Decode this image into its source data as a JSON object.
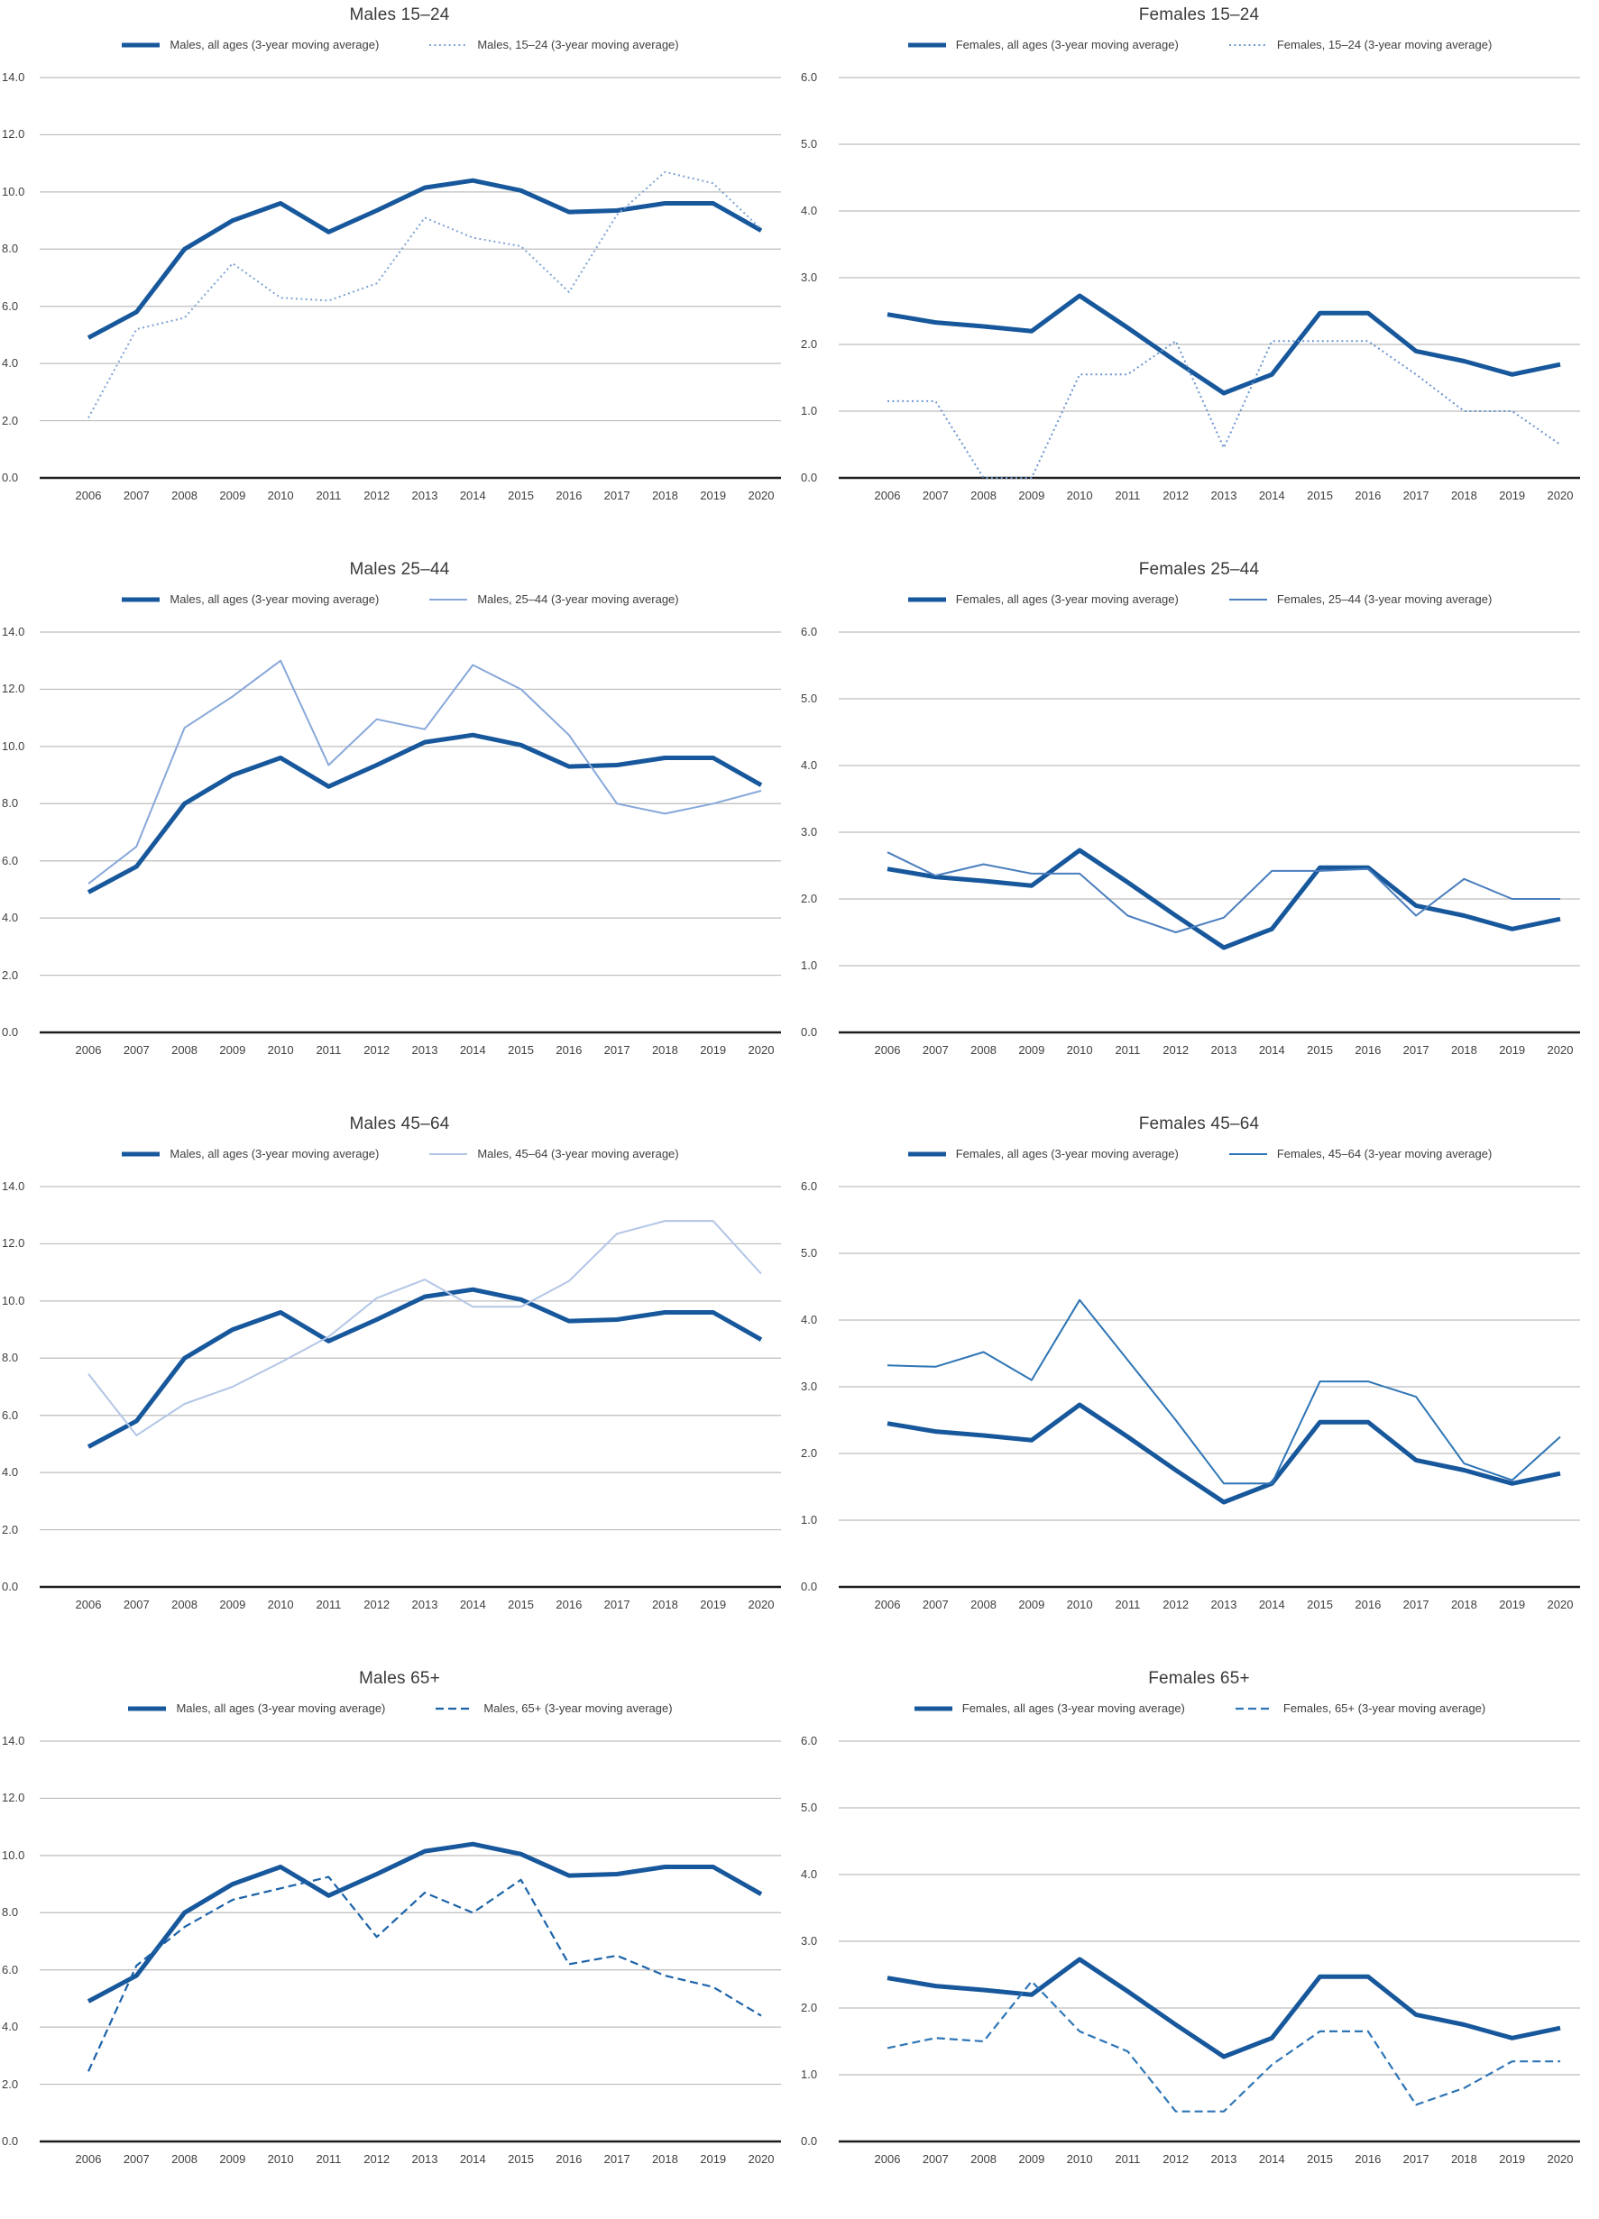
{
  "xticklabels": [
    "2006",
    "2007",
    "2008",
    "2009",
    "2010",
    "2011",
    "2012",
    "2013",
    "2014",
    "2015",
    "2016",
    "2017",
    "2018",
    "2019",
    "2020"
  ],
  "palette": {
    "all_ages_line": "#17579B",
    "gridline": "#bdbdbd",
    "baseline": "#1d1d1d",
    "text": "#3f3f3f"
  },
  "chart_data": [
    {
      "type": "line",
      "title": "Males 15–24",
      "x": [
        2006,
        2007,
        2008,
        2009,
        2010,
        2011,
        2012,
        2013,
        2014,
        2015,
        2016,
        2017,
        2018,
        2019,
        2020
      ],
      "ylim": [
        0,
        14
      ],
      "ytick_step": 2,
      "grid": true,
      "legend_position": "top",
      "yticklabels": [
        "14.0",
        "12.0",
        "10.0",
        "8.0",
        "6.0",
        "4.0",
        "2.0",
        "0.0"
      ],
      "series": [
        {
          "name": "Males, all ages (3-year moving average)",
          "style": "solid-thick",
          "color": "#17579B",
          "values": [
            4.9,
            5.8,
            8.0,
            9.0,
            9.6,
            8.6,
            9.35,
            10.15,
            10.4,
            10.05,
            9.3,
            9.35,
            9.6,
            9.6,
            8.65
          ]
        },
        {
          "name": "Males, 15–24 (3-year moving average)",
          "style": "dotted",
          "color": "#7FA3D4",
          "values": [
            2.1,
            5.2,
            5.6,
            7.5,
            6.3,
            6.2,
            6.8,
            9.1,
            8.4,
            8.1,
            6.5,
            9.2,
            10.7,
            10.3,
            8.7
          ]
        }
      ]
    },
    {
      "type": "line",
      "title": "Females 15–24",
      "x": [
        2006,
        2007,
        2008,
        2009,
        2010,
        2011,
        2012,
        2013,
        2014,
        2015,
        2016,
        2017,
        2018,
        2019,
        2020
      ],
      "ylim": [
        0,
        6
      ],
      "ytick_step": 1,
      "grid": true,
      "legend_position": "top",
      "yticklabels": [
        "6.0",
        "5.0",
        "4.0",
        "3.0",
        "2.0",
        "1.0",
        "0.0"
      ],
      "series": [
        {
          "name": "Females, all ages (3-year moving average)",
          "style": "solid-thick",
          "color": "#17579B",
          "values": [
            2.45,
            2.33,
            2.27,
            2.2,
            2.73,
            2.25,
            1.75,
            1.27,
            1.55,
            2.47,
            2.47,
            1.9,
            1.75,
            1.55,
            1.7
          ]
        },
        {
          "name": "Females, 15–24 (3-year moving average)",
          "style": "dotted",
          "color": "#6C96CE",
          "values": [
            1.15,
            1.15,
            0.0,
            0.0,
            1.55,
            1.55,
            2.05,
            0.45,
            2.05,
            2.05,
            2.05,
            1.55,
            1.0,
            1.0,
            0.5
          ]
        }
      ]
    },
    {
      "type": "line",
      "title": "Males 25–44",
      "x": [
        2006,
        2007,
        2008,
        2009,
        2010,
        2011,
        2012,
        2013,
        2014,
        2015,
        2016,
        2017,
        2018,
        2019,
        2020
      ],
      "ylim": [
        0,
        14
      ],
      "ytick_step": 2,
      "grid": true,
      "legend_position": "top",
      "yticklabels": [
        "14.0",
        "12.0",
        "10.0",
        "8.0",
        "6.0",
        "4.0",
        "2.0",
        "0.0"
      ],
      "series": [
        {
          "name": "Males, all ages (3-year moving average)",
          "style": "solid-thick",
          "color": "#17579B",
          "values": [
            4.9,
            5.8,
            8.0,
            9.0,
            9.6,
            8.6,
            9.35,
            10.15,
            10.4,
            10.05,
            9.3,
            9.35,
            9.6,
            9.6,
            8.65
          ]
        },
        {
          "name": "Males, 25–44 (3-year moving average)",
          "style": "thin",
          "color": "#88A8DA",
          "values": [
            5.2,
            6.5,
            10.65,
            11.75,
            13.0,
            9.35,
            10.95,
            10.6,
            12.85,
            12.0,
            10.4,
            8.0,
            7.65,
            8.0,
            8.45
          ]
        }
      ]
    },
    {
      "type": "line",
      "title": "Females 25–44",
      "x": [
        2006,
        2007,
        2008,
        2009,
        2010,
        2011,
        2012,
        2013,
        2014,
        2015,
        2016,
        2017,
        2018,
        2019,
        2020
      ],
      "ylim": [
        0,
        6
      ],
      "ytick_step": 1,
      "grid": true,
      "legend_position": "top",
      "yticklabels": [
        "6.0",
        "5.0",
        "4.0",
        "3.0",
        "2.0",
        "1.0",
        "0.0"
      ],
      "series": [
        {
          "name": "Females, all ages (3-year moving average)",
          "style": "solid-thick",
          "color": "#17579B",
          "values": [
            2.45,
            2.33,
            2.27,
            2.2,
            2.73,
            2.25,
            1.75,
            1.27,
            1.55,
            2.47,
            2.47,
            1.9,
            1.75,
            1.55,
            1.7
          ]
        },
        {
          "name": "Females, 25–44 (3-year moving average)",
          "style": "thin",
          "color": "#4A7EBD",
          "values": [
            2.7,
            2.35,
            2.52,
            2.38,
            2.38,
            1.75,
            1.5,
            1.72,
            2.42,
            2.42,
            2.45,
            1.75,
            2.3,
            2.0,
            2.0
          ]
        }
      ]
    },
    {
      "type": "line",
      "title": "Males 45–64",
      "x": [
        2006,
        2007,
        2008,
        2009,
        2010,
        2011,
        2012,
        2013,
        2014,
        2015,
        2016,
        2017,
        2018,
        2019,
        2020
      ],
      "ylim": [
        0,
        14
      ],
      "ytick_step": 2,
      "grid": true,
      "legend_position": "top",
      "yticklabels": [
        "14.0",
        "12.0",
        "10.0",
        "8.0",
        "6.0",
        "4.0",
        "2.0",
        "0.0"
      ],
      "series": [
        {
          "name": "Males, all ages (3-year moving average)",
          "style": "solid-thick",
          "color": "#17579B",
          "values": [
            4.9,
            5.8,
            8.0,
            9.0,
            9.6,
            8.6,
            9.35,
            10.15,
            10.4,
            10.05,
            9.3,
            9.35,
            9.6,
            9.6,
            8.65
          ]
        },
        {
          "name": "Males, 45–64 (3-year moving average)",
          "style": "thin",
          "color": "#B3C6E6",
          "values": [
            7.45,
            5.3,
            6.4,
            7.0,
            7.85,
            8.75,
            10.1,
            10.75,
            9.8,
            9.8,
            10.7,
            12.35,
            12.8,
            12.8,
            10.95
          ]
        }
      ]
    },
    {
      "type": "line",
      "title": "Females 45–64",
      "x": [
        2006,
        2007,
        2008,
        2009,
        2010,
        2011,
        2012,
        2013,
        2014,
        2015,
        2016,
        2017,
        2018,
        2019,
        2020
      ],
      "ylim": [
        0,
        6
      ],
      "ytick_step": 1,
      "grid": true,
      "legend_position": "top",
      "yticklabels": [
        "6.0",
        "5.0",
        "4.0",
        "3.0",
        "2.0",
        "1.0",
        "0.0"
      ],
      "series": [
        {
          "name": "Females, all ages (3-year moving average)",
          "style": "solid-thick",
          "color": "#17579B",
          "values": [
            2.45,
            2.33,
            2.27,
            2.2,
            2.73,
            2.25,
            1.75,
            1.27,
            1.55,
            2.47,
            2.47,
            1.9,
            1.75,
            1.55,
            1.7
          ]
        },
        {
          "name": "Females, 45–64 (3-year moving average)",
          "style": "thin",
          "color": "#2E75B6",
          "values": [
            3.32,
            3.3,
            3.52,
            3.1,
            4.3,
            3.4,
            2.5,
            1.55,
            1.55,
            3.08,
            3.08,
            2.85,
            1.85,
            1.6,
            2.25
          ]
        }
      ]
    },
    {
      "type": "line",
      "title": "Males 65+",
      "x": [
        2006,
        2007,
        2008,
        2009,
        2010,
        2011,
        2012,
        2013,
        2014,
        2015,
        2016,
        2017,
        2018,
        2019,
        2020
      ],
      "ylim": [
        0,
        14
      ],
      "ytick_step": 2,
      "grid": true,
      "legend_position": "top",
      "yticklabels": [
        "14.0",
        "12.0",
        "10.0",
        "8.0",
        "6.0",
        "4.0",
        "2.0",
        "0.0"
      ],
      "series": [
        {
          "name": "Males, all ages (3-year moving average)",
          "style": "solid-thick",
          "color": "#17579B",
          "values": [
            4.9,
            5.8,
            8.0,
            9.0,
            9.6,
            8.6,
            9.35,
            10.15,
            10.4,
            10.05,
            9.3,
            9.35,
            9.6,
            9.6,
            8.65
          ]
        },
        {
          "name": "Males, 65+ (3-year moving average)",
          "style": "dashed",
          "color": "#1C63A8",
          "values": [
            2.45,
            6.15,
            7.5,
            8.45,
            8.85,
            9.25,
            7.15,
            8.7,
            8.0,
            9.15,
            6.2,
            6.5,
            5.8,
            5.4,
            4.4
          ]
        }
      ]
    },
    {
      "type": "line",
      "title": "Females 65+",
      "x": [
        2006,
        2007,
        2008,
        2009,
        2010,
        2011,
        2012,
        2013,
        2014,
        2015,
        2016,
        2017,
        2018,
        2019,
        2020
      ],
      "ylim": [
        0,
        6
      ],
      "ytick_step": 1,
      "grid": true,
      "legend_position": "top",
      "yticklabels": [
        "6.0",
        "5.0",
        "4.0",
        "3.0",
        "2.0",
        "1.0",
        "0.0"
      ],
      "series": [
        {
          "name": "Females, all ages (3-year moving average)",
          "style": "solid-thick",
          "color": "#17579B",
          "values": [
            2.45,
            2.33,
            2.27,
            2.2,
            2.73,
            2.25,
            1.75,
            1.27,
            1.55,
            2.47,
            2.47,
            1.9,
            1.75,
            1.55,
            1.7
          ]
        },
        {
          "name": "Females, 65+ (3-year moving average)",
          "style": "dashed",
          "color": "#2E75B6",
          "values": [
            1.4,
            1.55,
            1.5,
            2.4,
            1.65,
            1.35,
            0.45,
            0.45,
            1.15,
            1.65,
            1.65,
            0.55,
            0.8,
            1.2,
            1.2
          ]
        }
      ]
    }
  ]
}
